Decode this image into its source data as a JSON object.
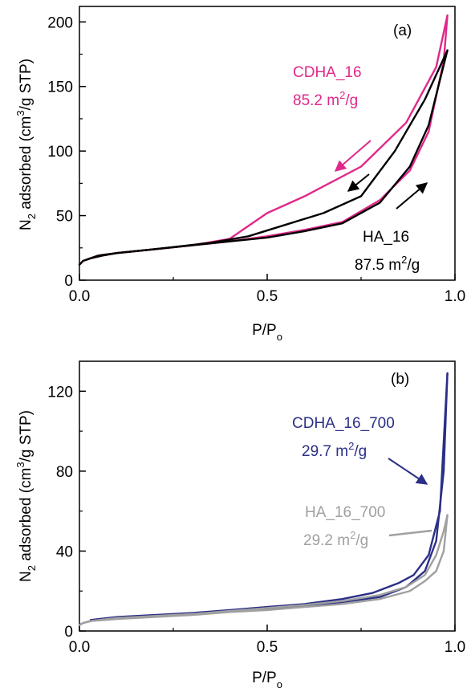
{
  "chart_data": [
    {
      "type": "line",
      "panel_label": "(a)",
      "xlabel": "P/P",
      "xlabel_sub": "o",
      "ylabel_parts": [
        "N",
        "2",
        " adsorbed (cm",
        "3",
        "/g STP)"
      ],
      "xlim": [
        0,
        1
      ],
      "ylim": [
        0,
        212
      ],
      "x_ticks": [
        {
          "v": 0,
          "label": "0.0"
        },
        {
          "v": 0.5,
          "label": "0.5"
        },
        {
          "v": 1.0,
          "label": "1.0"
        }
      ],
      "y_ticks": [
        {
          "v": 0,
          "label": "0"
        },
        {
          "v": 50,
          "label": "50"
        },
        {
          "v": 100,
          "label": "100"
        },
        {
          "v": 150,
          "label": "150"
        },
        {
          "v": 200,
          "label": "200"
        }
      ],
      "series": [
        {
          "name": "CDHA_16",
          "color": "#e0288a",
          "adsorption": [
            [
              0.0,
              12
            ],
            [
              0.01,
              15
            ],
            [
              0.03,
              17
            ],
            [
              0.06,
              19
            ],
            [
              0.1,
              21
            ],
            [
              0.2,
              24
            ],
            [
              0.3,
              27
            ],
            [
              0.4,
              30
            ],
            [
              0.5,
              34
            ],
            [
              0.6,
              39
            ],
            [
              0.7,
              45
            ],
            [
              0.8,
              62
            ],
            [
              0.88,
              85
            ],
            [
              0.93,
              115
            ],
            [
              0.97,
              170
            ],
            [
              0.98,
              205
            ]
          ],
          "desorption": [
            [
              0.98,
              205
            ],
            [
              0.95,
              165
            ],
            [
              0.87,
              122
            ],
            [
              0.75,
              88
            ],
            [
              0.6,
              65
            ],
            [
              0.5,
              52
            ],
            [
              0.4,
              32
            ],
            [
              0.3,
              27
            ],
            [
              0.2,
              24
            ],
            [
              0.1,
              21
            ],
            [
              0.05,
              19
            ],
            [
              0.02,
              16
            ]
          ]
        },
        {
          "name": "HA_16",
          "color": "#000000",
          "adsorption": [
            [
              0.0,
              12
            ],
            [
              0.01,
              15
            ],
            [
              0.03,
              17
            ],
            [
              0.06,
              19
            ],
            [
              0.1,
              21
            ],
            [
              0.2,
              24
            ],
            [
              0.3,
              27
            ],
            [
              0.4,
              30
            ],
            [
              0.5,
              33
            ],
            [
              0.6,
              38
            ],
            [
              0.7,
              44
            ],
            [
              0.8,
              60
            ],
            [
              0.88,
              88
            ],
            [
              0.93,
              120
            ],
            [
              0.96,
              155
            ],
            [
              0.98,
              178
            ]
          ],
          "desorption": [
            [
              0.98,
              178
            ],
            [
              0.92,
              140
            ],
            [
              0.84,
              100
            ],
            [
              0.75,
              65
            ],
            [
              0.65,
              52
            ],
            [
              0.55,
              43
            ],
            [
              0.45,
              34
            ],
            [
              0.35,
              29
            ],
            [
              0.2,
              24
            ],
            [
              0.1,
              21
            ],
            [
              0.05,
              19
            ],
            [
              0.02,
              16
            ]
          ]
        }
      ],
      "annotations": [
        {
          "line1": "CDHA_16",
          "line2_a": "85.2 m",
          "line2_sup": "2",
          "line2_b": "/g",
          "color": "#e0288a"
        },
        {
          "line1": "HA_16",
          "line2_a": "87.5 m",
          "line2_sup": "2",
          "line2_b": "/g",
          "color": "#000000"
        }
      ]
    },
    {
      "type": "line",
      "panel_label": "(b)",
      "xlabel": "P/P",
      "xlabel_sub": "o",
      "ylabel_parts": [
        "N",
        "2",
        " adsorbed (cm",
        "3",
        "/g STP)"
      ],
      "xlim": [
        0,
        1
      ],
      "ylim": [
        0,
        135
      ],
      "x_ticks": [
        {
          "v": 0,
          "label": "0.0"
        },
        {
          "v": 0.5,
          "label": "0.5"
        },
        {
          "v": 1.0,
          "label": "1.0"
        }
      ],
      "y_ticks": [
        {
          "v": 0,
          "label": "0"
        },
        {
          "v": 40,
          "label": "40"
        },
        {
          "v": 80,
          "label": "80"
        },
        {
          "v": 120,
          "label": "120"
        }
      ],
      "series": [
        {
          "name": "CDHA_16_700",
          "color": "#2b2f86",
          "adsorption": [
            [
              0.0,
              3
            ],
            [
              0.01,
              4
            ],
            [
              0.03,
              5
            ],
            [
              0.1,
              6.5
            ],
            [
              0.2,
              7.5
            ],
            [
              0.3,
              8.5
            ],
            [
              0.4,
              10
            ],
            [
              0.5,
              11
            ],
            [
              0.6,
              12.5
            ],
            [
              0.7,
              14.5
            ],
            [
              0.8,
              17
            ],
            [
              0.87,
              22
            ],
            [
              0.92,
              30
            ],
            [
              0.95,
              45
            ],
            [
              0.97,
              80
            ],
            [
              0.98,
              129
            ]
          ],
          "desorption": [
            [
              0.98,
              129
            ],
            [
              0.96,
              60
            ],
            [
              0.93,
              38
            ],
            [
              0.89,
              28
            ],
            [
              0.85,
              24
            ],
            [
              0.78,
              19
            ],
            [
              0.7,
              16
            ],
            [
              0.6,
              13.5
            ],
            [
              0.5,
              12
            ],
            [
              0.4,
              10.5
            ],
            [
              0.3,
              9
            ],
            [
              0.2,
              8
            ],
            [
              0.1,
              7
            ],
            [
              0.03,
              5.5
            ]
          ]
        },
        {
          "name": "HA_16_700",
          "color": "#a0a0a0",
          "adsorption": [
            [
              0.0,
              3
            ],
            [
              0.01,
              4
            ],
            [
              0.03,
              5
            ],
            [
              0.1,
              6
            ],
            [
              0.2,
              7
            ],
            [
              0.3,
              8
            ],
            [
              0.4,
              9.5
            ],
            [
              0.5,
              10.5
            ],
            [
              0.6,
              12
            ],
            [
              0.7,
              13.5
            ],
            [
              0.8,
              16
            ],
            [
              0.88,
              20
            ],
            [
              0.92,
              25
            ],
            [
              0.95,
              30
            ],
            [
              0.97,
              40
            ],
            [
              0.98,
              58
            ]
          ],
          "desorption": [
            [
              0.98,
              58
            ],
            [
              0.97,
              50
            ],
            [
              0.95,
              38
            ],
            [
              0.92,
              28
            ],
            [
              0.87,
              22
            ],
            [
              0.8,
              18
            ],
            [
              0.7,
              15
            ],
            [
              0.6,
              13
            ],
            [
              0.5,
              11.5
            ],
            [
              0.4,
              10
            ],
            [
              0.3,
              8.5
            ],
            [
              0.2,
              7.5
            ],
            [
              0.1,
              6.5
            ],
            [
              0.03,
              5
            ]
          ]
        }
      ],
      "annotations": [
        {
          "line1": "CDHA_16_700",
          "line2_a": "29.7 m",
          "line2_sup": "2",
          "line2_b": "/g",
          "color": "#2b2f86"
        },
        {
          "line1": "HA_16_700",
          "line2_a": "29.2 m",
          "line2_sup": "2",
          "line2_b": "/g",
          "color": "#a0a0a0"
        }
      ]
    }
  ]
}
